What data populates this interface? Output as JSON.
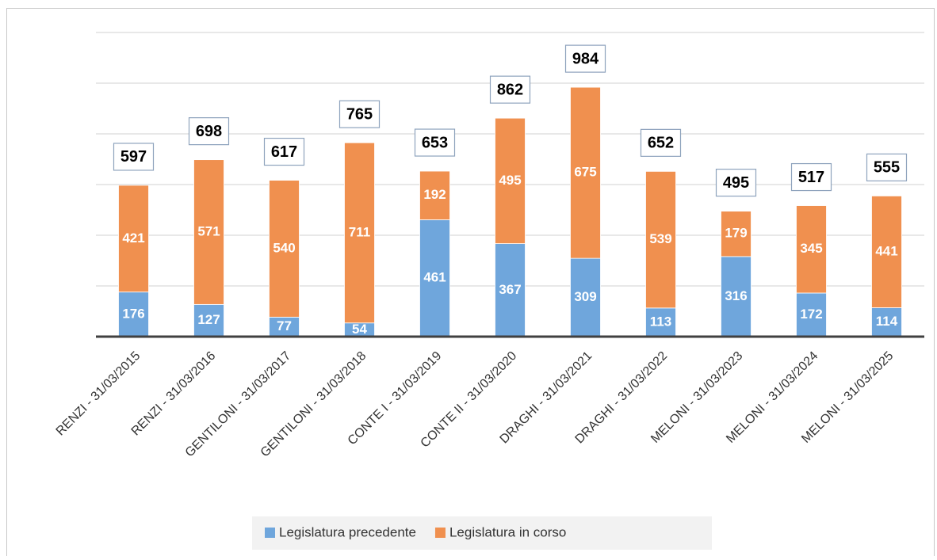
{
  "chart_data": {
    "type": "stacked_bar",
    "categories": [
      "RENZI - 31/03/2015",
      "RENZI - 31/03/2016",
      "GENTILONI - 31/03/2017",
      "GENTILONI - 31/03/2018",
      "CONTE I - 31/03/2019",
      "CONTE II - 31/03/2020",
      "DRAGHI - 31/03/2021",
      "DRAGHI - 31/03/2022",
      "MELONI - 31/03/2023",
      "MELONI - 31/03/2024",
      "MELONI - 31/03/2025"
    ],
    "series": [
      {
        "name": "Legislatura precedente",
        "color": "#6fa6dc",
        "values": [
          176,
          127,
          77,
          54,
          461,
          367,
          309,
          113,
          316,
          172,
          114
        ]
      },
      {
        "name": "Legislatura in corso",
        "color": "#f0904f",
        "values": [
          421,
          571,
          540,
          711,
          192,
          495,
          675,
          539,
          179,
          345,
          441
        ]
      }
    ],
    "totals": [
      597,
      698,
      617,
      765,
      653,
      862,
      984,
      652,
      495,
      517,
      555
    ],
    "ylim": [
      0,
      1200
    ],
    "yticks": [
      0,
      200,
      400,
      600,
      800,
      1000,
      1200
    ],
    "grid": true,
    "legend": "bottom"
  }
}
